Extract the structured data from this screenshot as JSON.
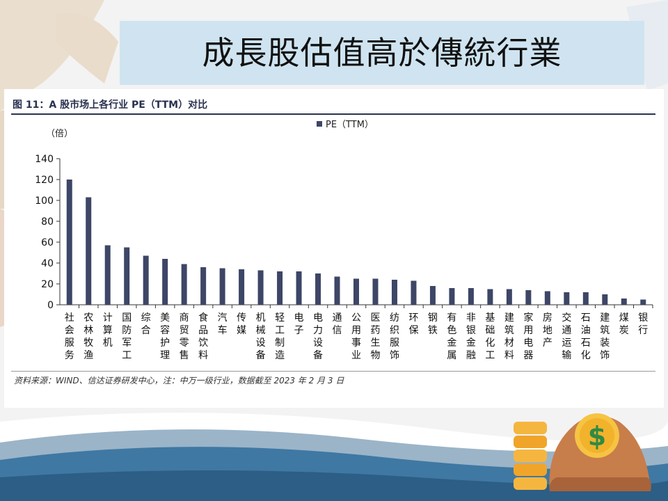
{
  "slide": {
    "title": "成長股估值高於傳統行業"
  },
  "figure": {
    "caption": "图 11：A 股市场上各行业 PE（TTM）对比",
    "source": "资料来源：WIND、信达证券研发中心，注：中万一级行业，数据截至 2023 年 2 月 3 日"
  },
  "colors": {
    "bar": "#3d4666",
    "title_band": "#cfe4f0",
    "rule": "#2a3250"
  },
  "chart_data": {
    "type": "bar",
    "title": "",
    "unit_label": "（倍）",
    "xlabel": "",
    "ylabel": "（倍）",
    "ylim": [
      0,
      140
    ],
    "yticks": [
      0,
      20,
      40,
      60,
      80,
      100,
      120,
      140
    ],
    "legend": {
      "position": "top-center"
    },
    "grid": false,
    "categories": [
      "社会服务",
      "农林牧渔",
      "计算机",
      "国防军工",
      "综合",
      "美容护理",
      "商贸零售",
      "食品饮料",
      "汽车",
      "传媒",
      "机械设备",
      "轻工制造",
      "电子",
      "电力设备",
      "通信",
      "公用事业",
      "医药生物",
      "纺织服饰",
      "环保",
      "钢铁",
      "有色金属",
      "非银金融",
      "基础化工",
      "建筑材料",
      "家用电器",
      "房地产",
      "交通运输",
      "石油石化",
      "建筑装饰",
      "煤炭",
      "银行"
    ],
    "series": [
      {
        "name": "PE（TTM）",
        "values": [
          120,
          103,
          57,
          55,
          47,
          44,
          39,
          36,
          35,
          34,
          33,
          32,
          32,
          30,
          27,
          25,
          25,
          24,
          23,
          18,
          16,
          16,
          15,
          15,
          14,
          13,
          12,
          12,
          10,
          6,
          5
        ]
      }
    ]
  }
}
